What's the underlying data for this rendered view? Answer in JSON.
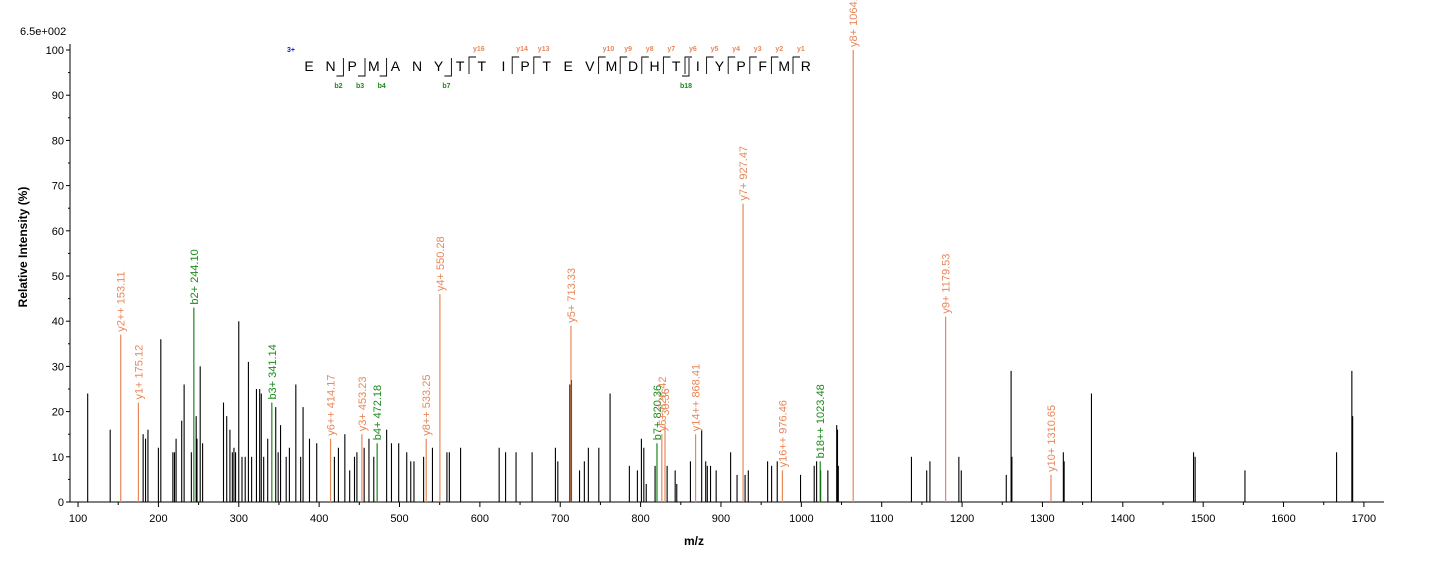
{
  "chart_data": {
    "type": "bar",
    "subtype": "mass-spectrum",
    "scale_label": "6.5e+002",
    "xlabel": "m/z",
    "ylabel": "Relative   Intensity (%)",
    "xlim": [
      90,
      1725
    ],
    "ylim": [
      0,
      100
    ],
    "xticks": [
      100,
      200,
      300,
      400,
      500,
      600,
      700,
      800,
      900,
      1000,
      1100,
      1200,
      1300,
      1400,
      1500,
      1600,
      1700
    ],
    "yticks": [
      0,
      10,
      20,
      30,
      40,
      50,
      60,
      70,
      80,
      90,
      100
    ],
    "colors": {
      "unassigned": "#000000",
      "y_ion": "#e8875a",
      "b_ion": "#1a8a1a",
      "charge": "#1515b5",
      "gray": "#aaaaaa"
    },
    "peptide": {
      "charge": "3+",
      "residues": [
        "E",
        "N",
        "P",
        "M",
        "A",
        "N",
        "Y",
        "T",
        "T",
        "I",
        "P",
        "T",
        "E",
        "V",
        "M",
        "D",
        "H",
        "T",
        "I",
        "Y",
        "P",
        "F",
        "M",
        "R"
      ],
      "y_ions": [
        {
          "after": 8,
          "label": "y16"
        },
        {
          "after": 10,
          "label": "y14"
        },
        {
          "after": 11,
          "label": "y13"
        },
        {
          "after": 14,
          "label": "y10"
        },
        {
          "after": 15,
          "label": "y9"
        },
        {
          "after": 16,
          "label": "y8"
        },
        {
          "after": 17,
          "label": "y7"
        },
        {
          "after": 18,
          "label": "y6"
        },
        {
          "after": 19,
          "label": "y5"
        },
        {
          "after": 20,
          "label": "y4"
        },
        {
          "after": 21,
          "label": "y3"
        },
        {
          "after": 22,
          "label": "y2"
        },
        {
          "after": 23,
          "label": "y1"
        }
      ],
      "b_ions": [
        {
          "after": 2,
          "label": "b2"
        },
        {
          "after": 3,
          "label": "b3"
        },
        {
          "after": 4,
          "label": "b4"
        },
        {
          "after": 7,
          "label": "b7"
        },
        {
          "after": 18,
          "label": "b18"
        }
      ]
    },
    "annotated_peaks": [
      {
        "mz": 153.11,
        "y": 37,
        "label": "y2++ 153.11",
        "kind": "y"
      },
      {
        "mz": 175.12,
        "y": 22,
        "label": "y1+ 175.12",
        "kind": "y"
      },
      {
        "mz": 244.1,
        "y": 43,
        "label": "b2+ 244.10",
        "kind": "b"
      },
      {
        "mz": 341.14,
        "y": 22,
        "label": "b3+ 341.14",
        "kind": "b"
      },
      {
        "mz": 414.17,
        "y": 14,
        "label": "y6++ 414.17",
        "kind": "y"
      },
      {
        "mz": 453.23,
        "y": 15,
        "label": "y3+ 453.23",
        "kind": "y"
      },
      {
        "mz": 472.18,
        "y": 13,
        "label": "b4+ 472.18",
        "kind": "b"
      },
      {
        "mz": 533.25,
        "y": 14,
        "label": "y8++ 533.25",
        "kind": "y"
      },
      {
        "mz": 550.28,
        "y": 46,
        "label": "y4+ 550.28",
        "kind": "y"
      },
      {
        "mz": 713.33,
        "y": 39,
        "label": "y5+ 713.33",
        "kind": "y"
      },
      {
        "mz": 820.36,
        "y": 13,
        "label": "b7+ 820.36",
        "kind": "b"
      },
      {
        "mz": 826.42,
        "y": 15,
        "label": "y6+ 826.42",
        "kind": "y"
      },
      {
        "mz": 830.36,
        "y": 17,
        "label": "~30.36",
        "kind": "y"
      },
      {
        "mz": 868.41,
        "y": 15,
        "label": "y14++ 868.41",
        "kind": "y"
      },
      {
        "mz": 927.47,
        "y": 66,
        "label": "y7+ 927.47",
        "kind": "y"
      },
      {
        "mz": 976.46,
        "y": 7,
        "label": "y16++ 976.46",
        "kind": "y"
      },
      {
        "mz": 1023.48,
        "y": 9,
        "label": "b18++ 1023.48",
        "kind": "b"
      },
      {
        "mz": 1064.53,
        "y": 100,
        "label": "y8+ 1064.53",
        "kind": "y"
      },
      {
        "mz": 1179.53,
        "y": 41,
        "label": "y9+ 1179.53",
        "kind": "y"
      },
      {
        "mz": 1310.65,
        "y": 6,
        "label": "y10+ 1310.65",
        "kind": "y"
      }
    ],
    "peaks": [
      [
        112,
        24
      ],
      [
        140,
        16
      ],
      [
        181,
        15
      ],
      [
        184,
        14
      ],
      [
        187,
        16
      ],
      [
        200,
        12
      ],
      [
        203,
        36
      ],
      [
        218,
        11
      ],
      [
        220,
        11
      ],
      [
        222,
        14
      ],
      [
        229,
        18
      ],
      [
        232,
        26
      ],
      [
        241,
        11
      ],
      [
        247,
        19
      ],
      [
        248,
        14
      ],
      [
        252,
        30
      ],
      [
        255,
        13
      ],
      [
        281,
        22
      ],
      [
        285,
        19
      ],
      [
        289,
        16
      ],
      [
        292,
        11
      ],
      [
        294,
        12
      ],
      [
        296,
        11
      ],
      [
        300,
        40
      ],
      [
        304,
        10
      ],
      [
        308,
        10
      ],
      [
        312,
        31
      ],
      [
        316,
        10
      ],
      [
        322,
        25
      ],
      [
        326,
        25
      ],
      [
        328,
        24
      ],
      [
        331,
        10
      ],
      [
        336,
        14
      ],
      [
        346,
        21
      ],
      [
        349,
        11
      ],
      [
        352,
        17
      ],
      [
        359,
        10
      ],
      [
        363,
        12
      ],
      [
        371,
        26
      ],
      [
        377,
        10
      ],
      [
        380,
        21
      ],
      [
        388,
        14
      ],
      [
        397,
        13
      ],
      [
        419,
        10
      ],
      [
        424,
        12
      ],
      [
        432,
        15
      ],
      [
        438,
        7
      ],
      [
        444,
        10
      ],
      [
        447,
        11
      ],
      [
        456,
        12
      ],
      [
        462,
        14
      ],
      [
        468,
        10
      ],
      [
        484,
        16
      ],
      [
        490,
        13
      ],
      [
        499,
        13
      ],
      [
        509,
        11
      ],
      [
        514,
        9
      ],
      [
        518,
        9
      ],
      [
        530,
        10
      ],
      [
        541,
        12
      ],
      [
        559,
        11
      ],
      [
        562,
        11
      ],
      [
        576,
        12
      ],
      [
        624,
        12
      ],
      [
        632,
        11
      ],
      [
        645,
        11
      ],
      [
        665,
        11
      ],
      [
        694,
        12
      ],
      [
        697,
        9
      ],
      [
        712,
        26
      ],
      [
        714,
        27
      ],
      [
        724,
        7
      ],
      [
        730,
        9
      ],
      [
        735,
        12
      ],
      [
        748,
        12
      ],
      [
        762,
        24
      ],
      [
        786,
        8
      ],
      [
        796,
        7
      ],
      [
        801,
        14
      ],
      [
        804,
        12
      ],
      [
        807,
        4
      ],
      [
        818,
        8
      ],
      [
        833,
        8
      ],
      [
        843,
        7
      ],
      [
        845,
        4
      ],
      [
        862,
        9
      ],
      [
        876,
        16
      ],
      [
        881,
        9
      ],
      [
        883,
        8
      ],
      [
        887,
        8
      ],
      [
        894,
        7
      ],
      [
        912,
        11
      ],
      [
        920,
        6
      ],
      [
        930,
        6
      ],
      [
        934,
        7
      ],
      [
        958,
        9
      ],
      [
        963,
        8
      ],
      [
        970,
        9
      ],
      [
        999,
        6
      ],
      [
        1016,
        8
      ],
      [
        1019,
        9
      ],
      [
        1024,
        7
      ],
      [
        1033,
        7
      ],
      [
        1044,
        17
      ],
      [
        1045,
        16
      ],
      [
        1046,
        8
      ],
      [
        1137,
        10
      ],
      [
        1156,
        7
      ],
      [
        1160,
        9
      ],
      [
        1196,
        10
      ],
      [
        1199,
        7
      ],
      [
        1255,
        6
      ],
      [
        1261,
        29
      ],
      [
        1262,
        10
      ],
      [
        1326,
        11
      ],
      [
        1327,
        9
      ],
      [
        1361,
        24
      ],
      [
        1488,
        11
      ],
      [
        1490,
        10
      ],
      [
        1552,
        7
      ],
      [
        1666,
        11
      ],
      [
        1685,
        29
      ],
      [
        1686,
        19
      ]
    ]
  }
}
